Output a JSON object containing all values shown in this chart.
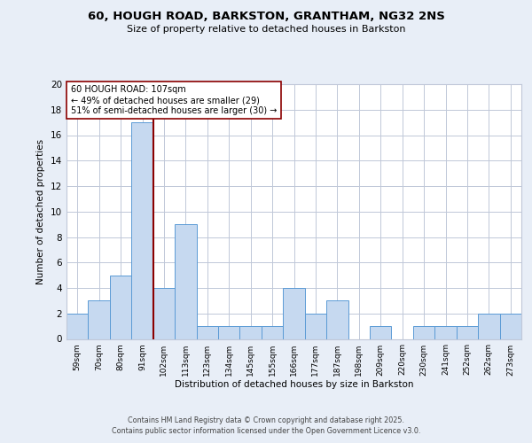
{
  "title": "60, HOUGH ROAD, BARKSTON, GRANTHAM, NG32 2NS",
  "subtitle": "Size of property relative to detached houses in Barkston",
  "xlabel": "Distribution of detached houses by size in Barkston",
  "ylabel": "Number of detached properties",
  "bar_labels": [
    "59sqm",
    "70sqm",
    "80sqm",
    "91sqm",
    "102sqm",
    "113sqm",
    "123sqm",
    "134sqm",
    "145sqm",
    "155sqm",
    "166sqm",
    "177sqm",
    "187sqm",
    "198sqm",
    "209sqm",
    "220sqm",
    "230sqm",
    "241sqm",
    "252sqm",
    "262sqm",
    "273sqm"
  ],
  "bar_values": [
    2,
    3,
    5,
    17,
    4,
    9,
    1,
    1,
    1,
    1,
    4,
    2,
    3,
    0,
    1,
    0,
    1,
    1,
    1,
    2,
    2
  ],
  "bar_color": "#c6d9f0",
  "bar_edge_color": "#5b9bd5",
  "vline_position": 4.0,
  "vline_color": "#8b0000",
  "annotation_text": "60 HOUGH ROAD: 107sqm\n← 49% of detached houses are smaller (29)\n51% of semi-detached houses are larger (30) →",
  "annotation_box_color": "white",
  "annotation_box_edge": "#8b0000",
  "ylim": [
    0,
    20
  ],
  "yticks": [
    0,
    2,
    4,
    6,
    8,
    10,
    12,
    14,
    16,
    18,
    20
  ],
  "bg_color": "#e8eef7",
  "plot_bg_color": "white",
  "grid_color": "#c0c8d8",
  "footer_line1": "Contains HM Land Registry data © Crown copyright and database right 2025.",
  "footer_line2": "Contains public sector information licensed under the Open Government Licence v3.0."
}
